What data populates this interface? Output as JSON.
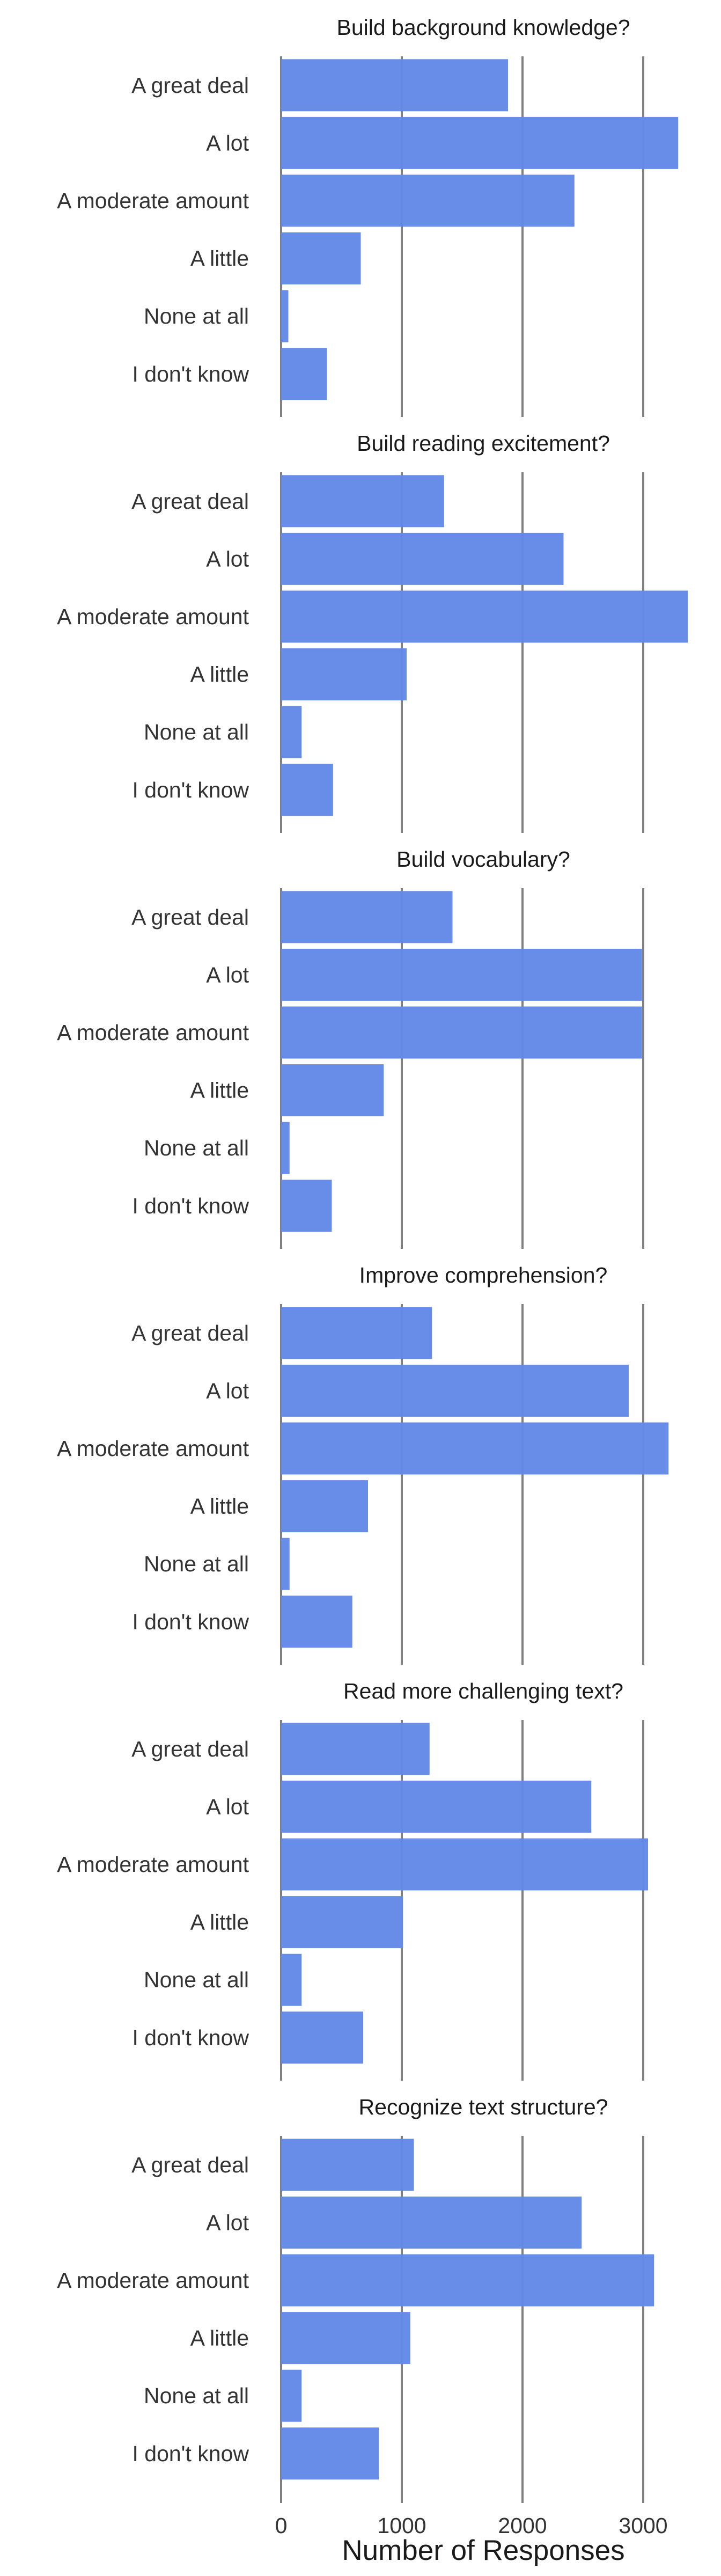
{
  "chart_data": {
    "type": "bar",
    "orientation": "horizontal",
    "facet": "vertical",
    "xlabel": "Number of Responses",
    "xlim": [
      0,
      3400
    ],
    "xticks": [
      0,
      1000,
      2000,
      3000
    ],
    "grid": true,
    "bar_color": "#6389e8",
    "categories": [
      "A great deal",
      "A lot",
      "A moderate amount",
      "A little",
      "None at all",
      "I don't know"
    ],
    "panels": [
      {
        "title": "Build background knowledge?",
        "values": [
          1880,
          3290,
          2430,
          660,
          60,
          380
        ]
      },
      {
        "title": "Build reading excitement?",
        "values": [
          1350,
          2340,
          3370,
          1040,
          170,
          430
        ]
      },
      {
        "title": "Build vocabulary?",
        "values": [
          1420,
          2990,
          2990,
          850,
          70,
          420
        ]
      },
      {
        "title": "Improve comprehension?",
        "values": [
          1250,
          2880,
          3210,
          720,
          70,
          590
        ]
      },
      {
        "title": "Read more challenging text?",
        "values": [
          1230,
          2570,
          3040,
          1010,
          170,
          680
        ]
      },
      {
        "title": "Recognize text structure?",
        "values": [
          1100,
          2490,
          3090,
          1070,
          170,
          810
        ]
      }
    ]
  }
}
